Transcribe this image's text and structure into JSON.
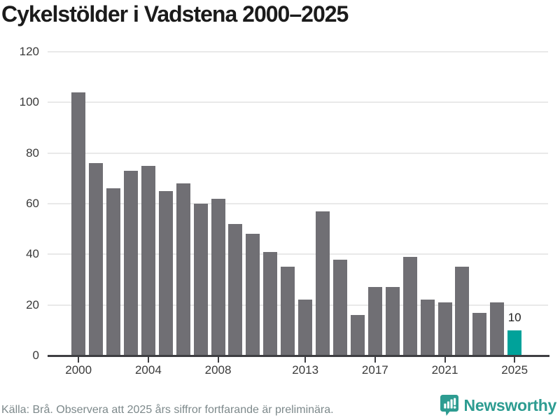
{
  "title": "Cykelstölder i Vadstena 2000–2025",
  "footer": {
    "source": "Källa: Brå. Observera att 2025 års siffror fortfarande är preliminära.",
    "brand": "Newsworthy"
  },
  "icons": {
    "logo": "newsworthy-speech-bubble-bar-chart-icon"
  },
  "colors": {
    "bar": "#706F74",
    "highlight": "#00A29A",
    "logo": "#2D9C91",
    "grid": "#E9E9E9",
    "axis": "#3E3E42",
    "axis_text": "#3A3A3A",
    "footer_text": "#7D898B",
    "title_text": "#1B1B1B"
  },
  "chart_data": {
    "type": "bar",
    "title": "Cykelstölder i Vadstena 2000–2025",
    "xlabel": "",
    "ylabel": "",
    "x": [
      2000,
      2001,
      2002,
      2003,
      2004,
      2005,
      2006,
      2007,
      2008,
      2009,
      2010,
      2011,
      2012,
      2013,
      2014,
      2015,
      2016,
      2017,
      2018,
      2019,
      2020,
      2021,
      2022,
      2023,
      2024,
      2025
    ],
    "values": [
      104,
      76,
      66,
      73,
      75,
      65,
      68,
      60,
      62,
      52,
      48,
      41,
      35,
      22,
      57,
      38,
      16,
      27,
      27,
      39,
      22,
      21,
      35,
      17,
      21,
      10
    ],
    "highlight_year": 2025,
    "highlight_label": "10",
    "x_tick_labels": [
      "2000",
      "2004",
      "2008",
      "2013",
      "2017",
      "2021",
      "2025"
    ],
    "y_ticks": [
      0,
      20,
      40,
      60,
      80,
      100,
      120
    ],
    "ylim": [
      0,
      120
    ],
    "grid": "horizontal-only",
    "legend": "none"
  }
}
